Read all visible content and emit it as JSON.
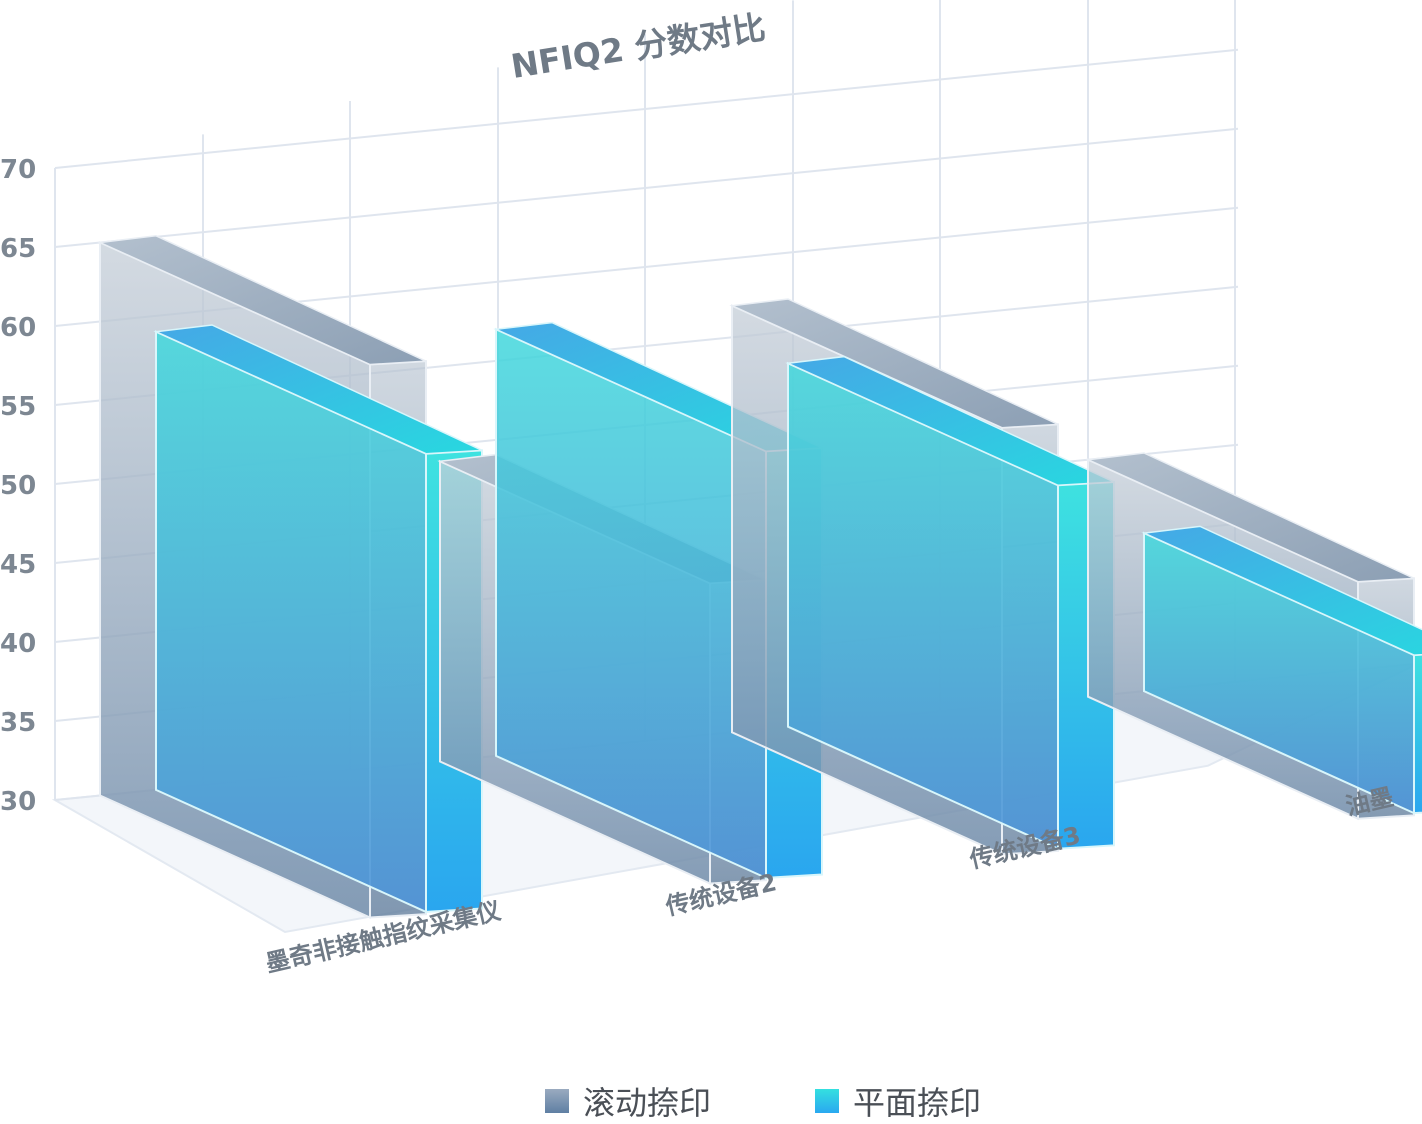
{
  "chart_data": {
    "type": "bar",
    "style": "3d-clustered",
    "title": "NFIQ2 分数对比",
    "categories": [
      "墨奇非接触指纹采集仪",
      "传统设备2",
      "传统设备3",
      "油墨"
    ],
    "series": [
      {
        "name": "滚动捺印",
        "values": [
          65,
          49,
          57,
          45
        ],
        "color": "#7f9bb8"
      },
      {
        "name": "平面捺印",
        "values": [
          59,
          57,
          53,
          40
        ],
        "color": "#2ec6e8"
      }
    ],
    "ylim": [
      30,
      70
    ],
    "yticks": [
      "30",
      "35",
      "40",
      "45",
      "50",
      "55",
      "60",
      "65",
      "70"
    ],
    "grid": true,
    "legend_position": "bottom"
  },
  "legend": {
    "items": [
      {
        "label": "滚动捺印",
        "color_top": "#9aabc0",
        "color_bottom": "#5f7fa3"
      },
      {
        "label": "平面捺印",
        "color_top": "#34e0e0",
        "color_bottom": "#2aa8f0"
      }
    ]
  }
}
